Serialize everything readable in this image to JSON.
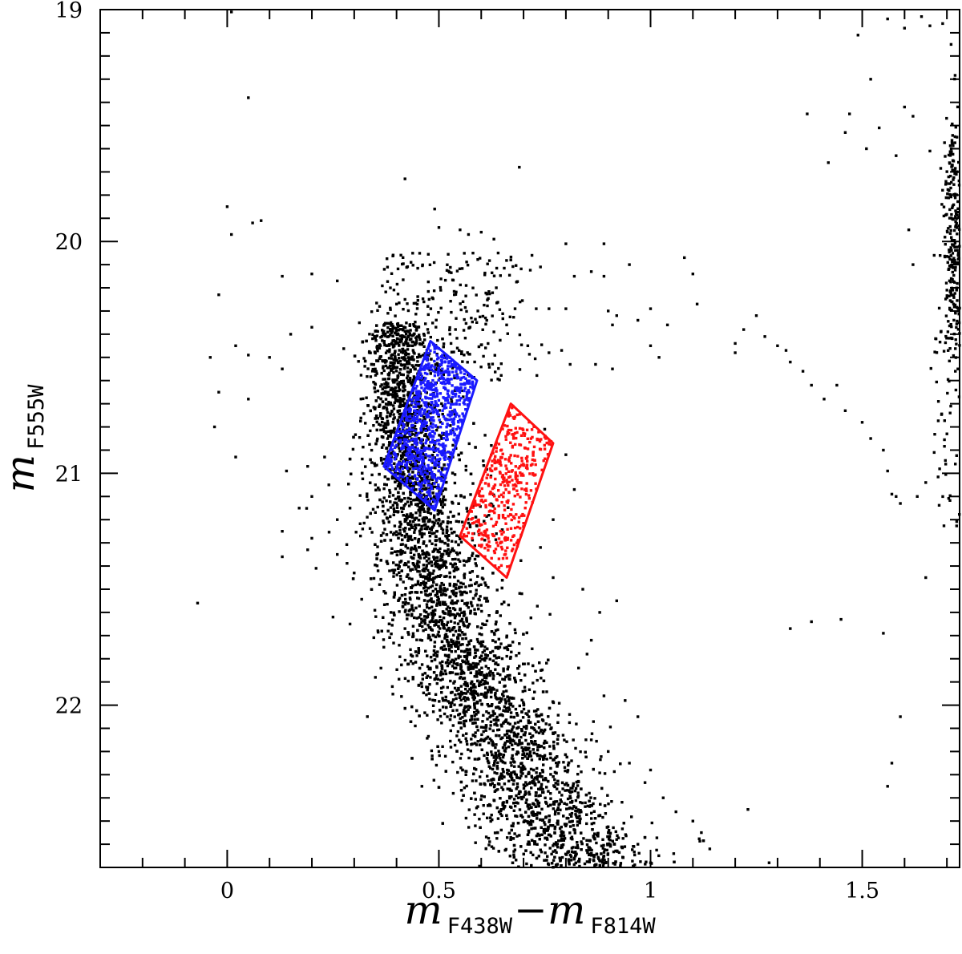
{
  "chart_data": {
    "type": "scatter",
    "title": "",
    "xlabel": {
      "parts": [
        {
          "main": "m",
          "sub": "F438W"
        },
        {
          "main": "−m",
          "sub": "F814W"
        }
      ]
    },
    "ylabel": {
      "main": "m",
      "sub": "F555W"
    },
    "xlim": [
      -0.3,
      1.73
    ],
    "ylim": [
      22.7,
      19.0
    ],
    "y_inverted": true,
    "grid": false,
    "x_ticks": [
      {
        "value": 0,
        "label": "0"
      },
      {
        "value": 0.5,
        "label": "0.5"
      },
      {
        "value": 1,
        "label": "1"
      },
      {
        "value": 1.5,
        "label": "1.5"
      }
    ],
    "y_ticks": [
      {
        "value": 19,
        "label": "19"
      },
      {
        "value": 20,
        "label": "20"
      },
      {
        "value": 21,
        "label": "21"
      },
      {
        "value": 22,
        "label": "22"
      }
    ],
    "series": [
      {
        "color": "#000000",
        "marker": "square",
        "points": [
          [
            0.01,
            19.01
          ],
          [
            0.05,
            19.38
          ],
          [
            0.0,
            19.85
          ],
          [
            0.06,
            19.92
          ],
          [
            0.08,
            19.91
          ],
          [
            0.01,
            19.97
          ],
          [
            -0.02,
            20.23
          ],
          [
            0.13,
            20.15
          ],
          [
            0.2,
            20.14
          ],
          [
            0.26,
            20.17
          ],
          [
            0.36,
            20.28
          ],
          [
            0.4,
            20.27
          ],
          [
            0.42,
            20.25
          ],
          [
            0.15,
            20.4
          ],
          [
            0.2,
            20.37
          ],
          [
            -0.04,
            20.5
          ],
          [
            0.02,
            20.45
          ],
          [
            0.05,
            20.49
          ],
          [
            0.1,
            20.5
          ],
          [
            0.13,
            20.55
          ],
          [
            -0.02,
            20.65
          ],
          [
            0.05,
            20.68
          ],
          [
            -0.03,
            20.8
          ],
          [
            0.02,
            20.93
          ],
          [
            0.14,
            20.99
          ],
          [
            0.19,
            20.97
          ],
          [
            0.23,
            20.93
          ],
          [
            0.24,
            21.05
          ],
          [
            0.2,
            21.1
          ],
          [
            0.17,
            21.15
          ],
          [
            0.26,
            21.2
          ],
          [
            0.29,
            21.15
          ],
          [
            0.33,
            21.1
          ],
          [
            0.35,
            21.05
          ],
          [
            0.32,
            21.24
          ],
          [
            0.13,
            21.25
          ],
          [
            0.13,
            21.36
          ],
          [
            0.19,
            21.33
          ],
          [
            0.2,
            21.28
          ],
          [
            0.26,
            21.35
          ],
          [
            0.3,
            21.43
          ],
          [
            0.36,
            21.48
          ],
          [
            0.21,
            21.41
          ],
          [
            0.25,
            21.62
          ],
          [
            0.29,
            21.65
          ],
          [
            -0.07,
            21.56
          ],
          [
            0.42,
            21.67
          ],
          [
            0.37,
            21.75
          ],
          [
            0.35,
            21.88
          ],
          [
            0.39,
            21.92
          ],
          [
            0.46,
            21.92
          ],
          [
            0.48,
            21.88
          ],
          [
            0.52,
            22.05
          ],
          [
            0.55,
            22.0
          ],
          [
            0.46,
            22.35
          ],
          [
            0.5,
            22.2
          ],
          [
            0.42,
            19.73
          ],
          [
            0.49,
            19.86
          ],
          [
            0.5,
            19.94
          ],
          [
            0.55,
            19.95
          ],
          [
            0.57,
            19.97
          ],
          [
            0.6,
            19.96
          ],
          [
            0.63,
            19.99
          ],
          [
            0.64,
            20.05
          ],
          [
            0.67,
            20.08
          ],
          [
            0.69,
            19.68
          ],
          [
            0.72,
            20.06
          ],
          [
            0.74,
            20.11
          ],
          [
            0.8,
            20.01
          ],
          [
            0.82,
            20.15
          ],
          [
            0.86,
            20.13
          ],
          [
            0.89,
            20.01
          ],
          [
            0.89,
            20.15
          ],
          [
            0.8,
            20.29
          ],
          [
            0.76,
            20.29
          ],
          [
            0.73,
            20.29
          ],
          [
            0.68,
            20.29
          ],
          [
            0.66,
            20.36
          ],
          [
            0.63,
            20.39
          ],
          [
            0.61,
            20.33
          ],
          [
            0.71,
            20.45
          ],
          [
            0.76,
            20.48
          ],
          [
            0.79,
            20.47
          ],
          [
            0.81,
            20.53
          ],
          [
            0.87,
            20.53
          ],
          [
            0.91,
            20.55
          ],
          [
            0.9,
            20.3
          ],
          [
            0.92,
            20.32
          ],
          [
            0.97,
            20.34
          ],
          [
            1.0,
            20.29
          ],
          [
            1.04,
            20.36
          ],
          [
            1.08,
            20.07
          ],
          [
            1.1,
            20.14
          ],
          [
            1.11,
            20.27
          ],
          [
            1.2,
            20.44
          ],
          [
            1.2,
            20.48
          ],
          [
            1.22,
            20.38
          ],
          [
            1.25,
            20.32
          ],
          [
            1.27,
            20.41
          ],
          [
            1.3,
            20.45
          ],
          [
            1.32,
            20.47
          ],
          [
            1.33,
            20.52
          ],
          [
            1.36,
            20.56
          ],
          [
            1.38,
            20.62
          ],
          [
            1.41,
            20.68
          ],
          [
            1.44,
            20.62
          ],
          [
            1.46,
            20.73
          ],
          [
            1.5,
            20.78
          ],
          [
            1.52,
            20.85
          ],
          [
            1.55,
            20.9
          ],
          [
            1.56,
            20.99
          ],
          [
            1.57,
            21.09
          ],
          [
            1.59,
            21.13
          ],
          [
            1.63,
            21.1
          ],
          [
            1.65,
            21.04
          ],
          [
            1.67,
            20.91
          ],
          [
            1.68,
            20.69
          ],
          [
            1.72,
            20.56
          ],
          [
            1.7,
            20.83
          ],
          [
            1.72,
            20.96
          ],
          [
            0.95,
            20.1
          ],
          [
            1.0,
            20.45
          ],
          [
            1.02,
            20.5
          ],
          [
            0.91,
            20.36
          ],
          [
            0.75,
            20.81
          ],
          [
            0.8,
            20.92
          ],
          [
            0.82,
            21.07
          ],
          [
            0.77,
            21.2
          ],
          [
            0.74,
            21.32
          ],
          [
            0.77,
            21.45
          ],
          [
            0.84,
            21.5
          ],
          [
            0.88,
            21.6
          ],
          [
            0.92,
            21.55
          ],
          [
            0.86,
            21.72
          ],
          [
            0.83,
            21.84
          ],
          [
            0.85,
            21.78
          ],
          [
            0.89,
            21.96
          ],
          [
            0.94,
            21.98
          ],
          [
            0.97,
            22.05
          ],
          [
            0.86,
            22.15
          ],
          [
            0.9,
            22.2
          ],
          [
            0.95,
            22.25
          ],
          [
            1.0,
            22.28
          ],
          [
            1.03,
            22.4
          ],
          [
            1.06,
            22.46
          ],
          [
            1.1,
            22.5
          ],
          [
            1.12,
            22.55
          ],
          [
            1.14,
            22.62
          ],
          [
            0.97,
            22.6
          ],
          [
            1.0,
            22.68
          ],
          [
            1.23,
            22.45
          ],
          [
            1.28,
            22.68
          ],
          [
            1.33,
            21.67
          ],
          [
            1.38,
            21.64
          ],
          [
            1.45,
            21.63
          ],
          [
            1.55,
            21.69
          ],
          [
            1.58,
            21.1
          ],
          [
            1.65,
            21.45
          ],
          [
            1.59,
            22.05
          ],
          [
            1.57,
            22.25
          ],
          [
            1.56,
            22.35
          ],
          [
            1.49,
            19.11
          ],
          [
            1.52,
            19.3
          ],
          [
            1.54,
            19.51
          ],
          [
            1.56,
            19.04
          ],
          [
            1.6,
            19.08
          ],
          [
            1.64,
            19.03
          ],
          [
            1.66,
            19.07
          ],
          [
            1.69,
            19.06
          ],
          [
            1.71,
            19.15
          ],
          [
            1.6,
            19.42
          ],
          [
            1.62,
            19.46
          ],
          [
            1.66,
            19.61
          ],
          [
            1.61,
            19.95
          ],
          [
            1.62,
            20.1
          ],
          [
            1.67,
            20.06
          ],
          [
            1.7,
            20.21
          ],
          [
            1.46,
            19.53
          ],
          [
            1.47,
            19.45
          ],
          [
            1.51,
            19.6
          ],
          [
            1.58,
            19.63
          ],
          [
            1.37,
            19.45
          ],
          [
            1.42,
            19.66
          ]
        ],
        "cloud": {
          "main_sequence_ridge": [
            [
              0.4,
              20.6
            ],
            [
              0.43,
              21.0
            ],
            [
              0.45,
              21.3
            ],
            [
              0.5,
              21.6
            ],
            [
              0.57,
              21.9
            ],
            [
              0.64,
              22.1
            ],
            [
              0.7,
              22.35
            ],
            [
              0.78,
              22.55
            ],
            [
              0.84,
              22.7
            ]
          ],
          "turnoff_spread": [
            [
              0.38,
              20.25
            ],
            [
              0.5,
              20.05
            ],
            [
              0.6,
              20.3
            ]
          ]
        }
      },
      {
        "color": "#1a1aff",
        "marker": "square",
        "region": [
          [
            0.48,
            20.43
          ],
          [
            0.59,
            20.6
          ],
          [
            0.49,
            21.16
          ],
          [
            0.37,
            20.97
          ]
        ]
      },
      {
        "color": "#ff1111",
        "marker": "square",
        "region": [
          [
            0.67,
            20.7
          ],
          [
            0.77,
            20.87
          ],
          [
            0.66,
            21.45
          ],
          [
            0.55,
            21.27
          ]
        ]
      }
    ]
  }
}
